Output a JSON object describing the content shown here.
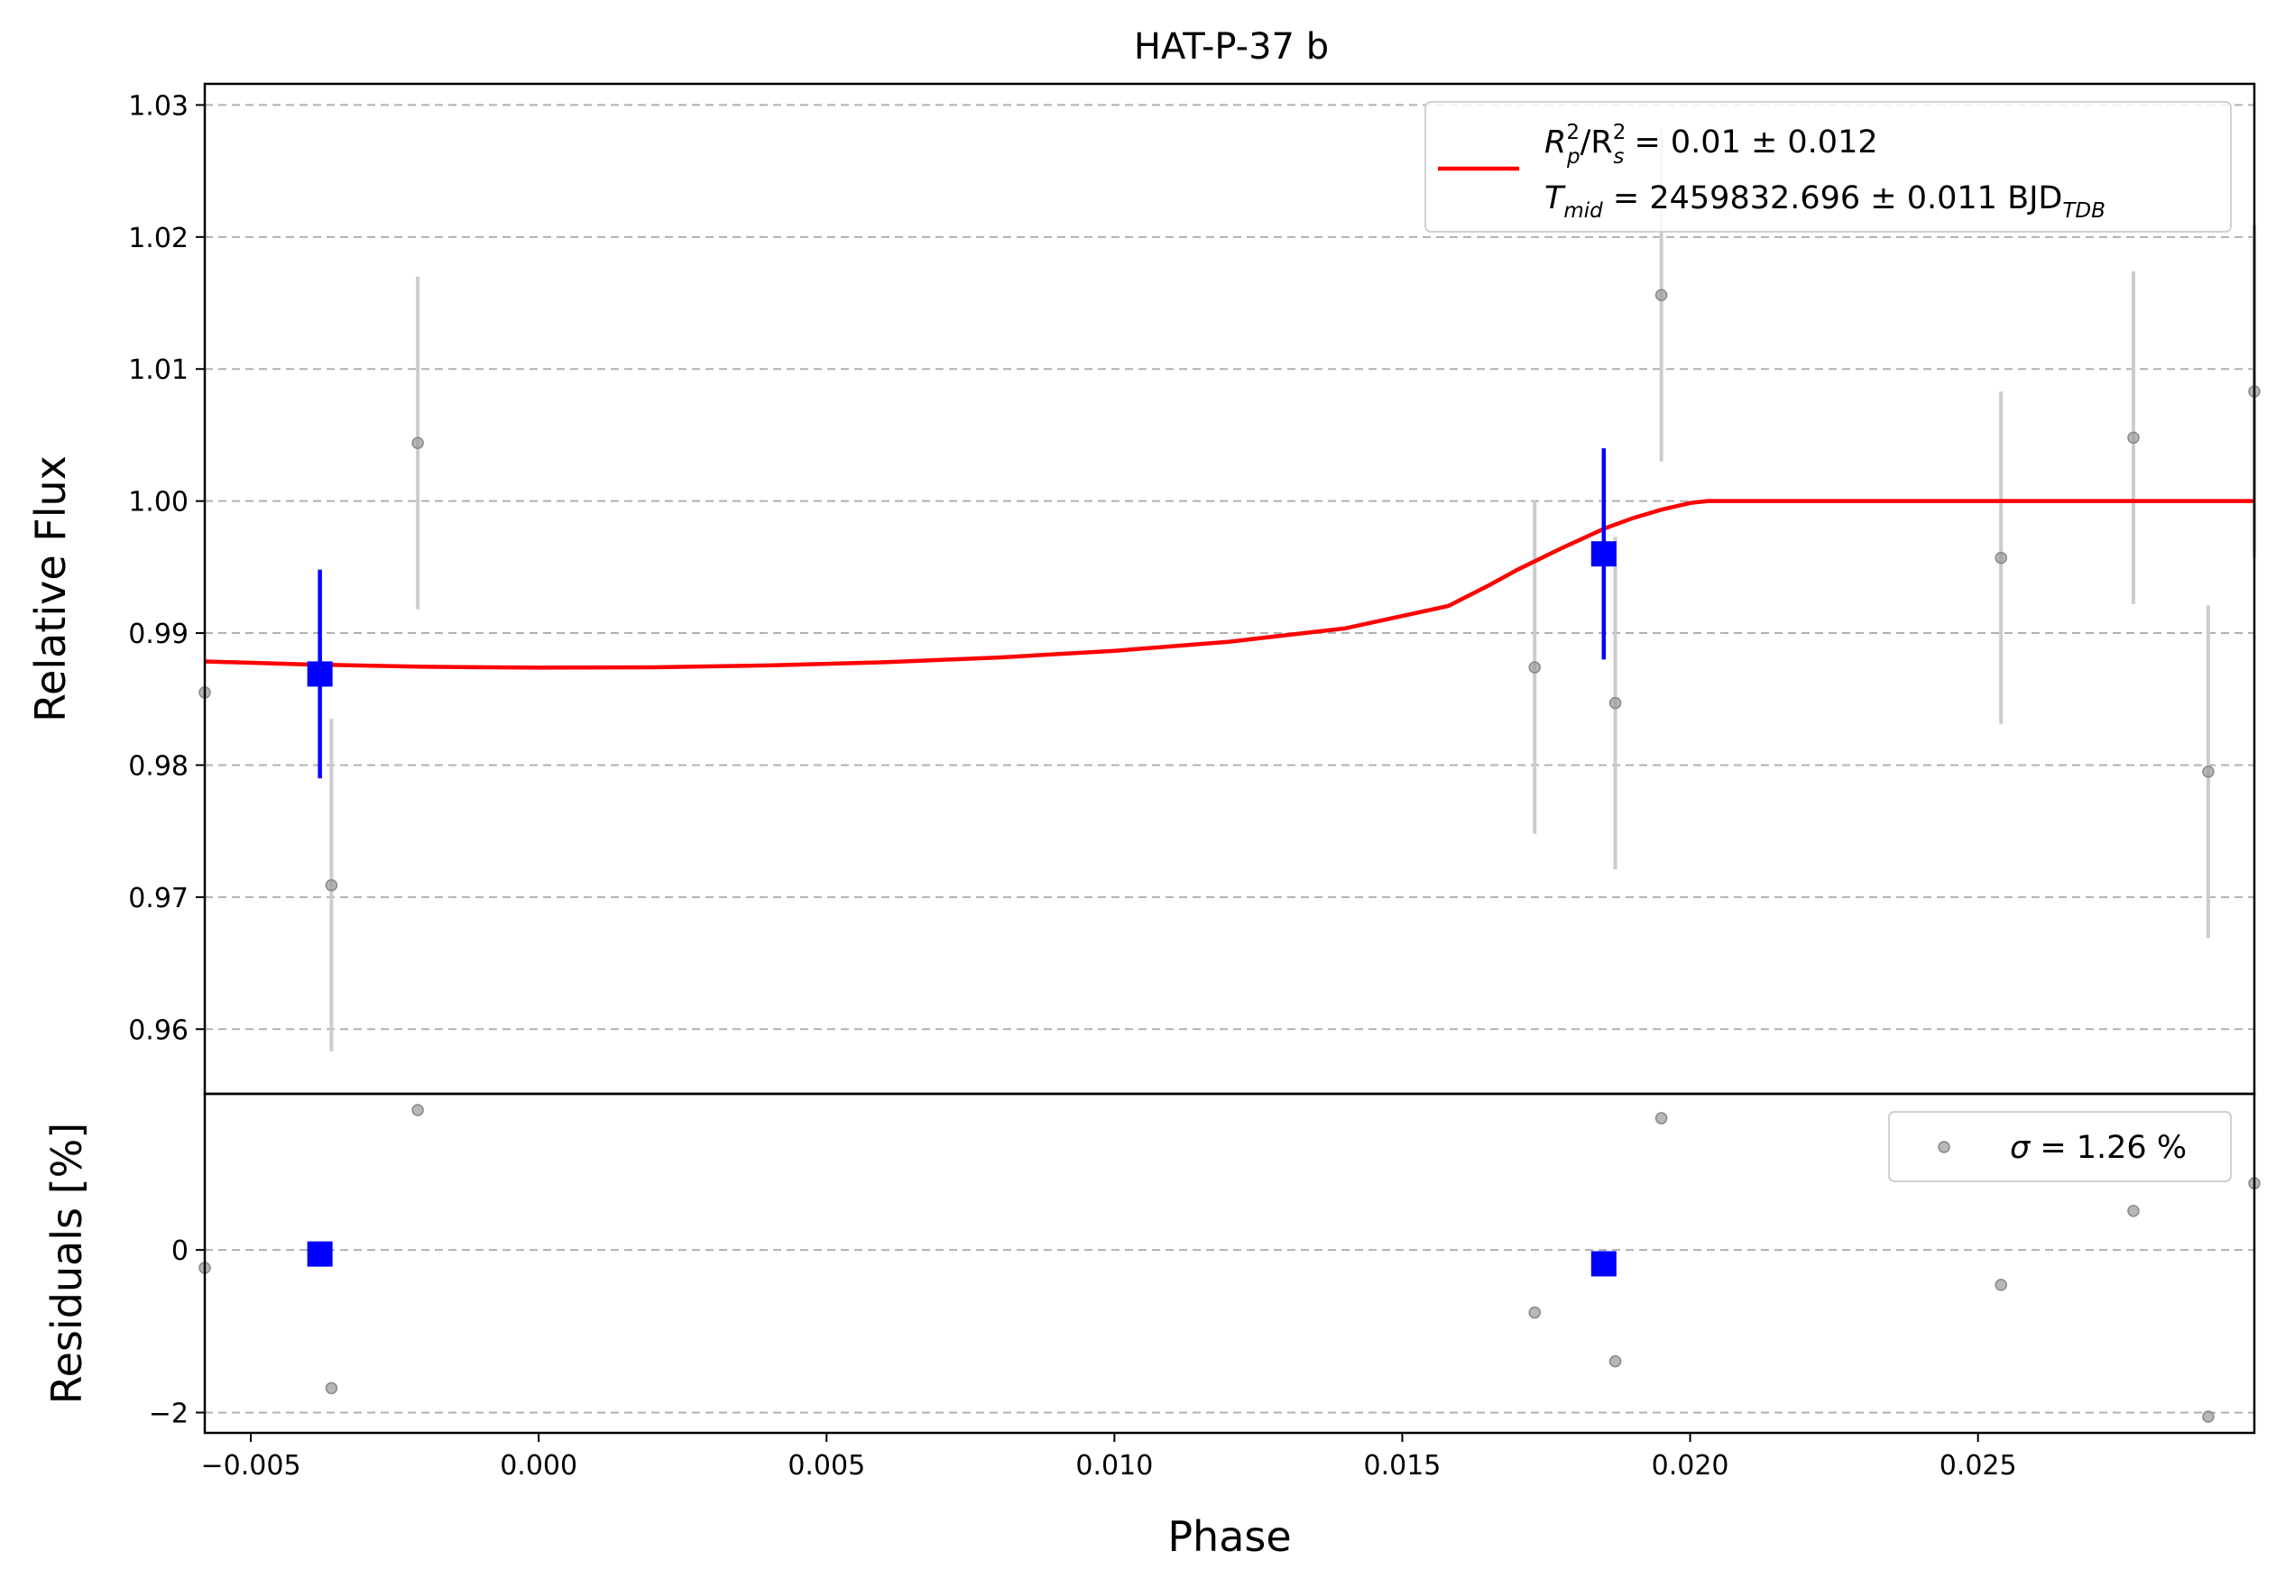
{
  "chart_data": {
    "type": "scatter",
    "title": "HAT-P-37 b",
    "xlabel": "Phase",
    "xlim": [
      -0.0058,
      0.0298
    ],
    "xticks": [
      "−0.005",
      "0.000",
      "0.005",
      "0.010",
      "0.015",
      "0.020",
      "0.025"
    ],
    "xtick_values": [
      -0.005,
      0.0,
      0.005,
      0.01,
      0.015,
      0.02,
      0.025
    ],
    "grid": "horizontal dashed",
    "top_panel": {
      "ylabel": "Relative Flux",
      "ylim": [
        0.9551,
        1.0316
      ],
      "yticks": [
        "0.96",
        "0.97",
        "0.98",
        "0.99",
        "1.00",
        "1.01",
        "1.02",
        "1.03"
      ],
      "ytick_values": [
        0.96,
        0.97,
        0.98,
        0.99,
        1.0,
        1.01,
        1.02,
        1.03
      ],
      "data_points": [
        {
          "x": -0.0058,
          "y": 0.9855,
          "err": 0.0
        },
        {
          "x": -0.0036,
          "y": 0.9709,
          "err": 0.0126
        },
        {
          "x": -0.0021,
          "y": 1.0044,
          "err": 0.0126
        },
        {
          "x": 0.0173,
          "y": 0.9874,
          "err": 0.0126
        },
        {
          "x": 0.0187,
          "y": 0.9847,
          "err": 0.0126
        },
        {
          "x": 0.0195,
          "y": 1.0156,
          "err": 0.0126
        },
        {
          "x": 0.0254,
          "y": 0.9957,
          "err": 0.0126
        },
        {
          "x": 0.0277,
          "y": 1.0048,
          "err": 0.0126
        },
        {
          "x": 0.029,
          "y": 0.9795,
          "err": 0.0126
        },
        {
          "x": 0.0298,
          "y": 1.0083,
          "err": 0.0126
        }
      ],
      "binned_points": [
        {
          "x": -0.0038,
          "y": 0.9869,
          "err": 0.0079
        },
        {
          "x": 0.0185,
          "y": 0.996,
          "err": 0.008
        }
      ],
      "model_curve": [
        {
          "x": -0.0058,
          "y": 0.98785
        },
        {
          "x": -0.004,
          "y": 0.98762
        },
        {
          "x": -0.002,
          "y": 0.98745
        },
        {
          "x": 0.0,
          "y": 0.98738
        },
        {
          "x": 0.002,
          "y": 0.98741
        },
        {
          "x": 0.004,
          "y": 0.98755
        },
        {
          "x": 0.006,
          "y": 0.98779
        },
        {
          "x": 0.008,
          "y": 0.98815
        },
        {
          "x": 0.01,
          "y": 0.98866
        },
        {
          "x": 0.012,
          "y": 0.98935
        },
        {
          "x": 0.014,
          "y": 0.99035
        },
        {
          "x": 0.0158,
          "y": 0.99205
        },
        {
          "x": 0.0165,
          "y": 0.9936
        },
        {
          "x": 0.017,
          "y": 0.9948
        },
        {
          "x": 0.0178,
          "y": 0.9965
        },
        {
          "x": 0.0185,
          "y": 0.9979
        },
        {
          "x": 0.019,
          "y": 0.9987
        },
        {
          "x": 0.0195,
          "y": 0.99935
        },
        {
          "x": 0.02,
          "y": 0.99985
        },
        {
          "x": 0.0203,
          "y": 1.0
        },
        {
          "x": 0.0298,
          "y": 1.0
        }
      ],
      "legend": {
        "line1": {
          "a": "R",
          "a_sup": "2",
          "a_sub": "p",
          "b": "/R",
          "b_sup": "2",
          "b_sub": "s",
          "rest": " = 0.01 ± 0.012"
        },
        "line2": {
          "a": "T",
          "a_sub": "mid",
          "rest": " = 2459832.696 ± 0.011 BJD",
          "rest_sub": "TDB"
        },
        "placement": "top-right"
      }
    },
    "bottom_panel": {
      "ylabel": "Residuals [%]",
      "ylim": [
        -2.25,
        1.92
      ],
      "yticks": [
        "−2",
        "0"
      ],
      "ytick_values": [
        -2,
        0
      ],
      "data_points": [
        {
          "x": -0.0058,
          "y": -0.22
        },
        {
          "x": -0.0036,
          "y": -1.7
        },
        {
          "x": -0.0021,
          "y": 1.72
        },
        {
          "x": 0.0173,
          "y": -0.77
        },
        {
          "x": 0.0187,
          "y": -1.37
        },
        {
          "x": 0.0195,
          "y": 1.62
        },
        {
          "x": 0.0254,
          "y": -0.43
        },
        {
          "x": 0.0277,
          "y": 0.48
        },
        {
          "x": 0.029,
          "y": -2.05
        },
        {
          "x": 0.0298,
          "y": 0.82
        }
      ],
      "binned_points": [
        {
          "x": -0.0038,
          "y": -0.05
        },
        {
          "x": 0.0185,
          "y": -0.17
        }
      ],
      "legend": {
        "sigma": "σ",
        "rest": " = 1.26 %",
        "placement": "top-right"
      }
    },
    "colors": {
      "data": "#999999",
      "errorbar": "#cccccc",
      "binned": "#0000ff",
      "model": "#ff0000",
      "grid": "#b0b0b0"
    }
  }
}
